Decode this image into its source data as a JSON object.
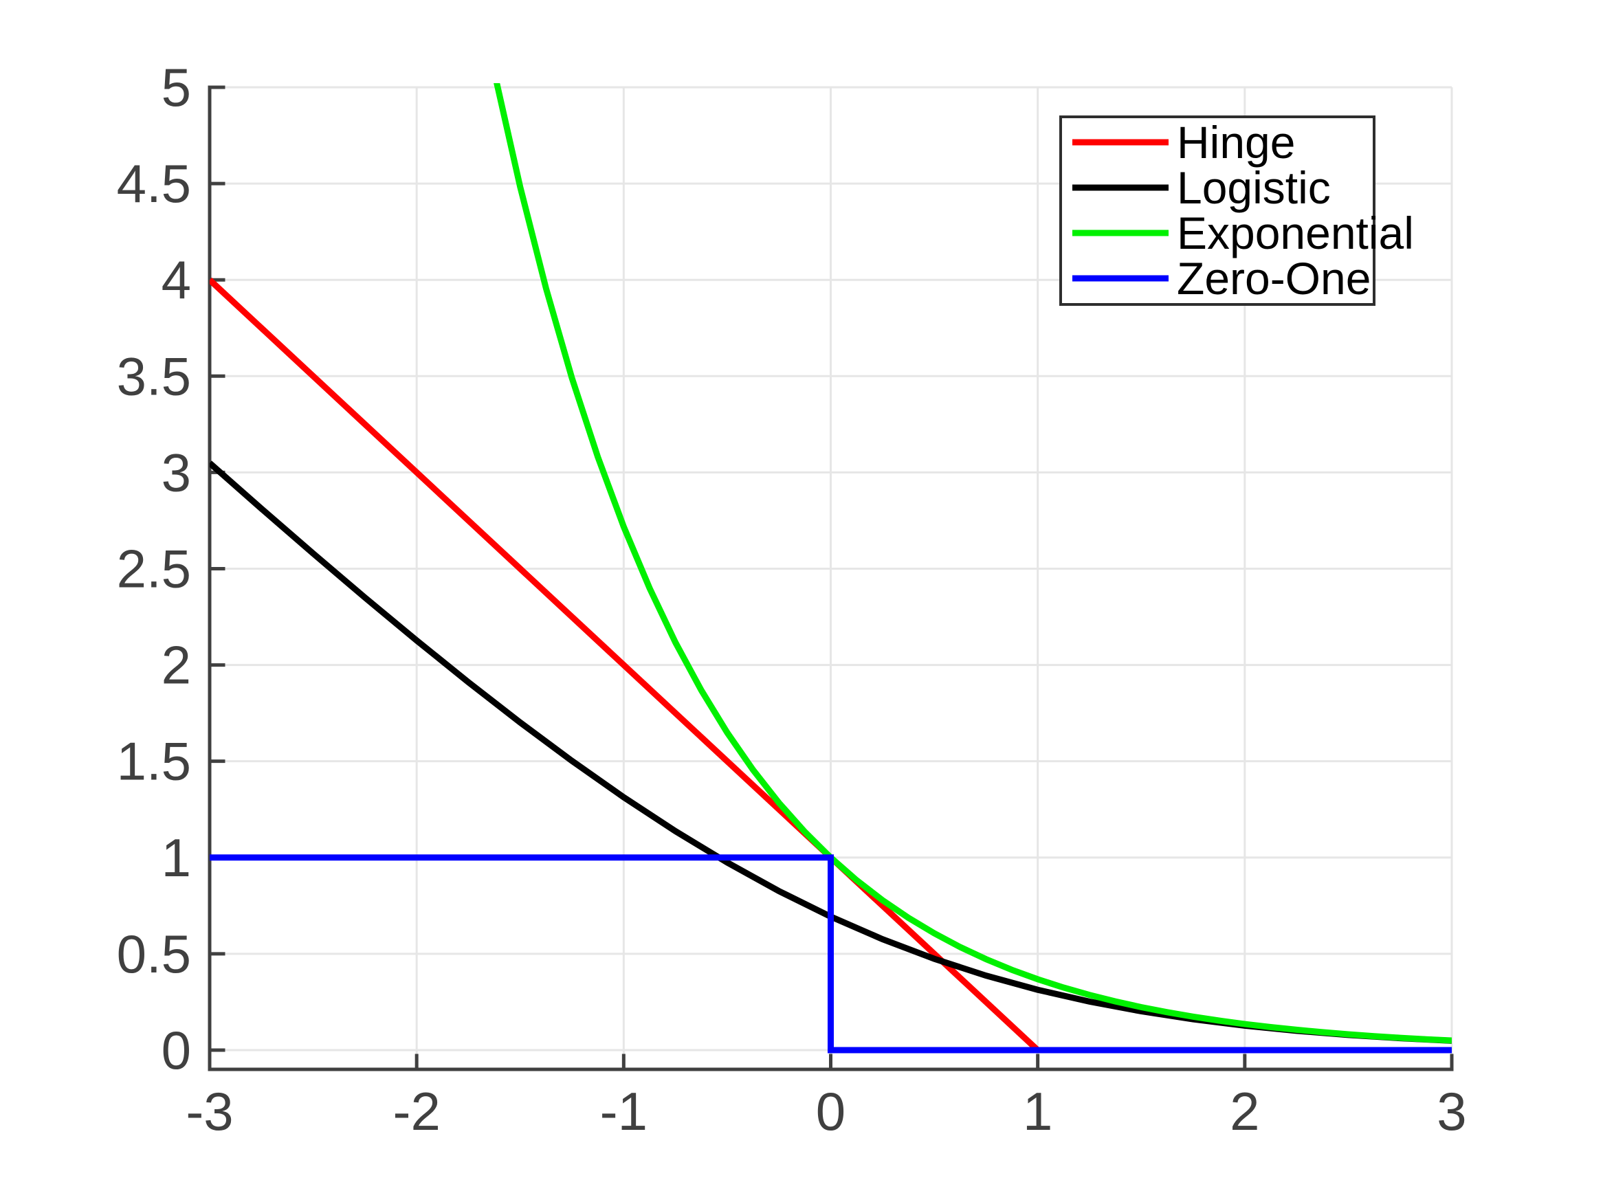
{
  "chart_data": {
    "type": "line",
    "title": "",
    "xlabel": "",
    "ylabel": "",
    "xlim": [
      -3,
      3
    ],
    "ylim": [
      -0.1,
      5
    ],
    "xticks": {
      "values": [
        -3,
        -2,
        -1,
        0,
        1,
        2,
        3
      ],
      "labels": [
        "-3",
        "-2",
        "-1",
        "0",
        "1",
        "2",
        "3"
      ]
    },
    "yticks": {
      "values": [
        0,
        0.5,
        1,
        1.5,
        2,
        2.5,
        3,
        3.5,
        4,
        4.5,
        5
      ],
      "labels": [
        "0",
        "0.5",
        "1",
        "1.5",
        "2",
        "2.5",
        "3",
        "3.5",
        "4",
        "4.5",
        "5"
      ]
    },
    "grid": true,
    "legend": {
      "position": "top-right",
      "entries": [
        "Hinge",
        "Logistic",
        "Exponential",
        "Zero-One"
      ]
    },
    "series": [
      {
        "name": "Hinge",
        "color": "#ff0000",
        "points": [
          [
            -3,
            4
          ],
          [
            1,
            0
          ],
          [
            3,
            0
          ]
        ]
      },
      {
        "name": "Logistic",
        "color": "#000000",
        "points": [
          [
            -3,
            3.0486
          ],
          [
            -2.75,
            2.8119
          ],
          [
            -2.5,
            2.5789
          ],
          [
            -2.25,
            2.3502
          ],
          [
            -2,
            2.1269
          ],
          [
            -1.75,
            1.9103
          ],
          [
            -1.5,
            1.7014
          ],
          [
            -1.25,
            1.502
          ],
          [
            -1,
            1.3133
          ],
          [
            -0.75,
            1.1369
          ],
          [
            -0.5,
            0.9741
          ],
          [
            -0.25,
            0.8259
          ],
          [
            0,
            0.6931
          ],
          [
            0.25,
            0.576
          ],
          [
            0.5,
            0.4741
          ],
          [
            0.75,
            0.3868
          ],
          [
            1,
            0.3133
          ],
          [
            1.25,
            0.252
          ],
          [
            1.5,
            0.2014
          ],
          [
            1.75,
            0.1602
          ],
          [
            2,
            0.1269
          ],
          [
            2.25,
            0.1002
          ],
          [
            2.5,
            0.0789
          ],
          [
            2.75,
            0.0619
          ],
          [
            3,
            0.0486
          ]
        ]
      },
      {
        "name": "Exponential",
        "color": "#00f000",
        "points": [
          [
            -1.75,
            5.7546
          ],
          [
            -1.625,
            5.0784
          ],
          [
            -1.5,
            4.4817
          ],
          [
            -1.375,
            3.9552
          ],
          [
            -1.25,
            3.4903
          ],
          [
            -1.125,
            3.0802
          ],
          [
            -1,
            2.7183
          ],
          [
            -0.875,
            2.3989
          ],
          [
            -0.75,
            2.117
          ],
          [
            -0.625,
            1.8682
          ],
          [
            -0.5,
            1.6487
          ],
          [
            -0.375,
            1.455
          ],
          [
            -0.25,
            1.284
          ],
          [
            -0.125,
            1.1331
          ],
          [
            0,
            1
          ],
          [
            0.125,
            0.8825
          ],
          [
            0.25,
            0.7788
          ],
          [
            0.375,
            0.6873
          ],
          [
            0.5,
            0.6065
          ],
          [
            0.625,
            0.5353
          ],
          [
            0.75,
            0.4724
          ],
          [
            0.875,
            0.4169
          ],
          [
            1,
            0.3679
          ],
          [
            1.125,
            0.3247
          ],
          [
            1.25,
            0.2865
          ],
          [
            1.375,
            0.2528
          ],
          [
            1.5,
            0.2231
          ],
          [
            1.625,
            0.1969
          ],
          [
            1.75,
            0.1738
          ],
          [
            1.875,
            0.1534
          ],
          [
            2,
            0.1353
          ],
          [
            2.125,
            0.1194
          ],
          [
            2.25,
            0.1054
          ],
          [
            2.375,
            0.093
          ],
          [
            2.5,
            0.0821
          ],
          [
            2.625,
            0.0724
          ],
          [
            2.75,
            0.0639
          ],
          [
            2.875,
            0.0564
          ],
          [
            3,
            0.0498
          ]
        ]
      },
      {
        "name": "Zero-One",
        "color": "#0000ff",
        "points": [
          [
            -3,
            1
          ],
          [
            0,
            1
          ],
          [
            0,
            0
          ],
          [
            3,
            0
          ]
        ]
      }
    ]
  },
  "style": {
    "background": "#ffffff",
    "axis_color": "#404040",
    "tick_label_color": "#404040",
    "grid_color": "#e6e6e6",
    "legend_background": "#ffffff",
    "legend_border_color": "#2e2e2e",
    "legend_text_color": "#000000"
  }
}
